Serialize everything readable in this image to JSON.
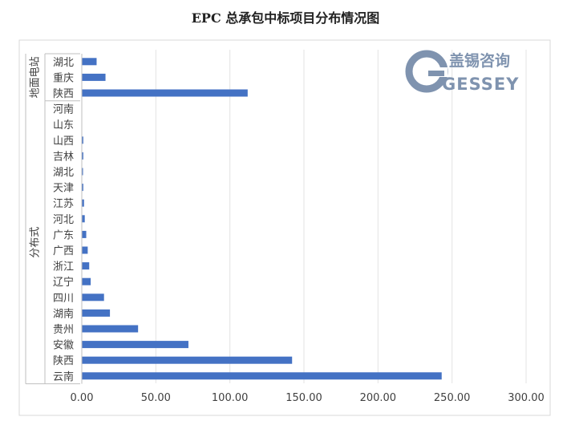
{
  "chart_data": {
    "type": "bar",
    "orientation": "horizontal",
    "title": "EPC 总承包中标项目分布情况图",
    "groups": [
      {
        "name": "地面电站",
        "categories": [
          "湖北",
          "重庆",
          "陕西"
        ],
        "values": [
          10,
          16,
          112
        ]
      },
      {
        "name": "分布式",
        "categories": [
          "河南",
          "山东",
          "山西",
          "吉林",
          "湖北",
          "天津",
          "江苏",
          "河北",
          "广东",
          "广西",
          "浙江",
          "辽宁",
          "四川",
          "湖南",
          "贵州",
          "安徽",
          "陕西",
          "云南"
        ],
        "values": [
          0,
          0,
          1,
          1,
          0.5,
          1,
          1.5,
          2,
          3,
          4,
          5,
          6,
          15,
          19,
          38,
          72,
          142,
          243
        ]
      }
    ],
    "xlim": [
      0,
      300
    ],
    "xticks": [
      "0.00",
      "50.00",
      "100.00",
      "150.00",
      "200.00",
      "250.00",
      "300.00"
    ],
    "xtick_values": [
      0,
      50,
      100,
      150,
      200,
      250,
      300
    ],
    "grid": "vertical",
    "bar_color": "#4472C4"
  },
  "logo": {
    "text": "盖锡咨询",
    "mark": "GESSEY",
    "color": "#7F93AF"
  }
}
